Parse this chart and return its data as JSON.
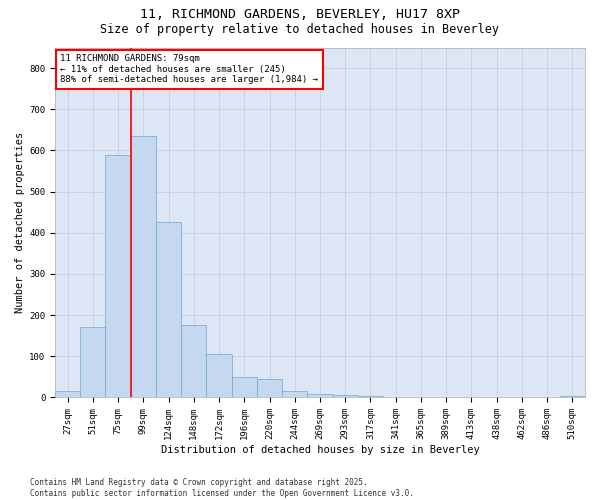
{
  "title_line1": "11, RICHMOND GARDENS, BEVERLEY, HU17 8XP",
  "title_line2": "Size of property relative to detached houses in Beverley",
  "xlabel": "Distribution of detached houses by size in Beverley",
  "ylabel": "Number of detached properties",
  "bar_color": "#c5d8f0",
  "bar_edge_color": "#6aaad4",
  "grid_color": "#c8d4e4",
  "background_color": "#dce6f5",
  "categories": [
    "27sqm",
    "51sqm",
    "75sqm",
    "99sqm",
    "124sqm",
    "148sqm",
    "172sqm",
    "196sqm",
    "220sqm",
    "244sqm",
    "269sqm",
    "293sqm",
    "317sqm",
    "341sqm",
    "365sqm",
    "389sqm",
    "413sqm",
    "438sqm",
    "462sqm",
    "486sqm",
    "510sqm"
  ],
  "values": [
    15,
    170,
    590,
    635,
    425,
    175,
    105,
    50,
    45,
    15,
    8,
    5,
    3,
    2,
    2,
    2,
    2,
    2,
    2,
    2,
    3
  ],
  "red_line_x": 2.5,
  "annotation_title": "11 RICHMOND GARDENS: 79sqm",
  "annotation_line1": "← 11% of detached houses are smaller (245)",
  "annotation_line2": "88% of semi-detached houses are larger (1,984) →",
  "footnote1": "Contains HM Land Registry data © Crown copyright and database right 2025.",
  "footnote2": "Contains public sector information licensed under the Open Government Licence v3.0.",
  "ylim": [
    0,
    850
  ],
  "yticks": [
    0,
    100,
    200,
    300,
    400,
    500,
    600,
    700,
    800
  ],
  "title_fontsize": 9.5,
  "subtitle_fontsize": 8.5,
  "axis_label_fontsize": 7.5,
  "tick_fontsize": 6.5,
  "annotation_fontsize": 6.5,
  "footnote_fontsize": 5.5
}
